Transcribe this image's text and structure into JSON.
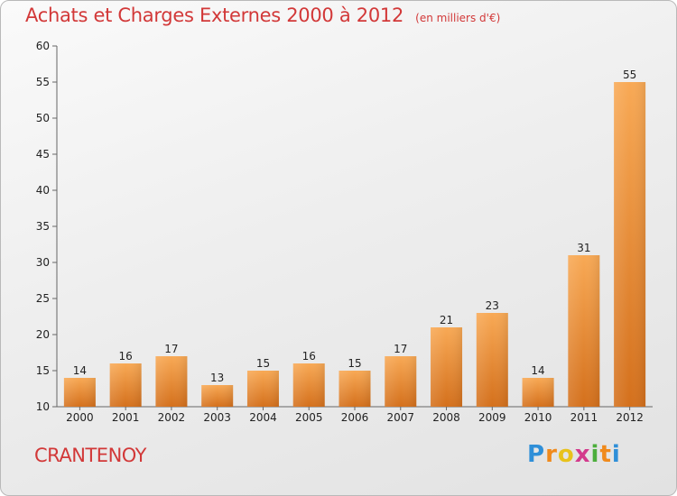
{
  "header": {
    "title": "Achats et Charges Externes 2000 à 2012",
    "unit": "(en milliers d'€)"
  },
  "footer": {
    "town": "CRANTENOY",
    "logo": "Proxiti"
  },
  "colors": {
    "title": "#d23838",
    "bar_light": "#f8a955",
    "bar_dark": "#d4701c"
  },
  "chart_data": {
    "type": "bar",
    "title": "Achats et Charges Externes 2000 à 2012",
    "subtitle": "(en milliers d'€)",
    "xlabel": "",
    "ylabel": "",
    "categories": [
      "2000",
      "2001",
      "2002",
      "2003",
      "2004",
      "2005",
      "2006",
      "2007",
      "2008",
      "2009",
      "2010",
      "2011",
      "2012"
    ],
    "values": [
      14,
      16,
      17,
      13,
      15,
      16,
      15,
      17,
      21,
      23,
      14,
      31,
      55
    ],
    "ylim": [
      10,
      60
    ],
    "yticks": [
      10,
      15,
      20,
      25,
      30,
      35,
      40,
      45,
      50,
      55,
      60
    ],
    "grid": false,
    "data_labels": true
  }
}
